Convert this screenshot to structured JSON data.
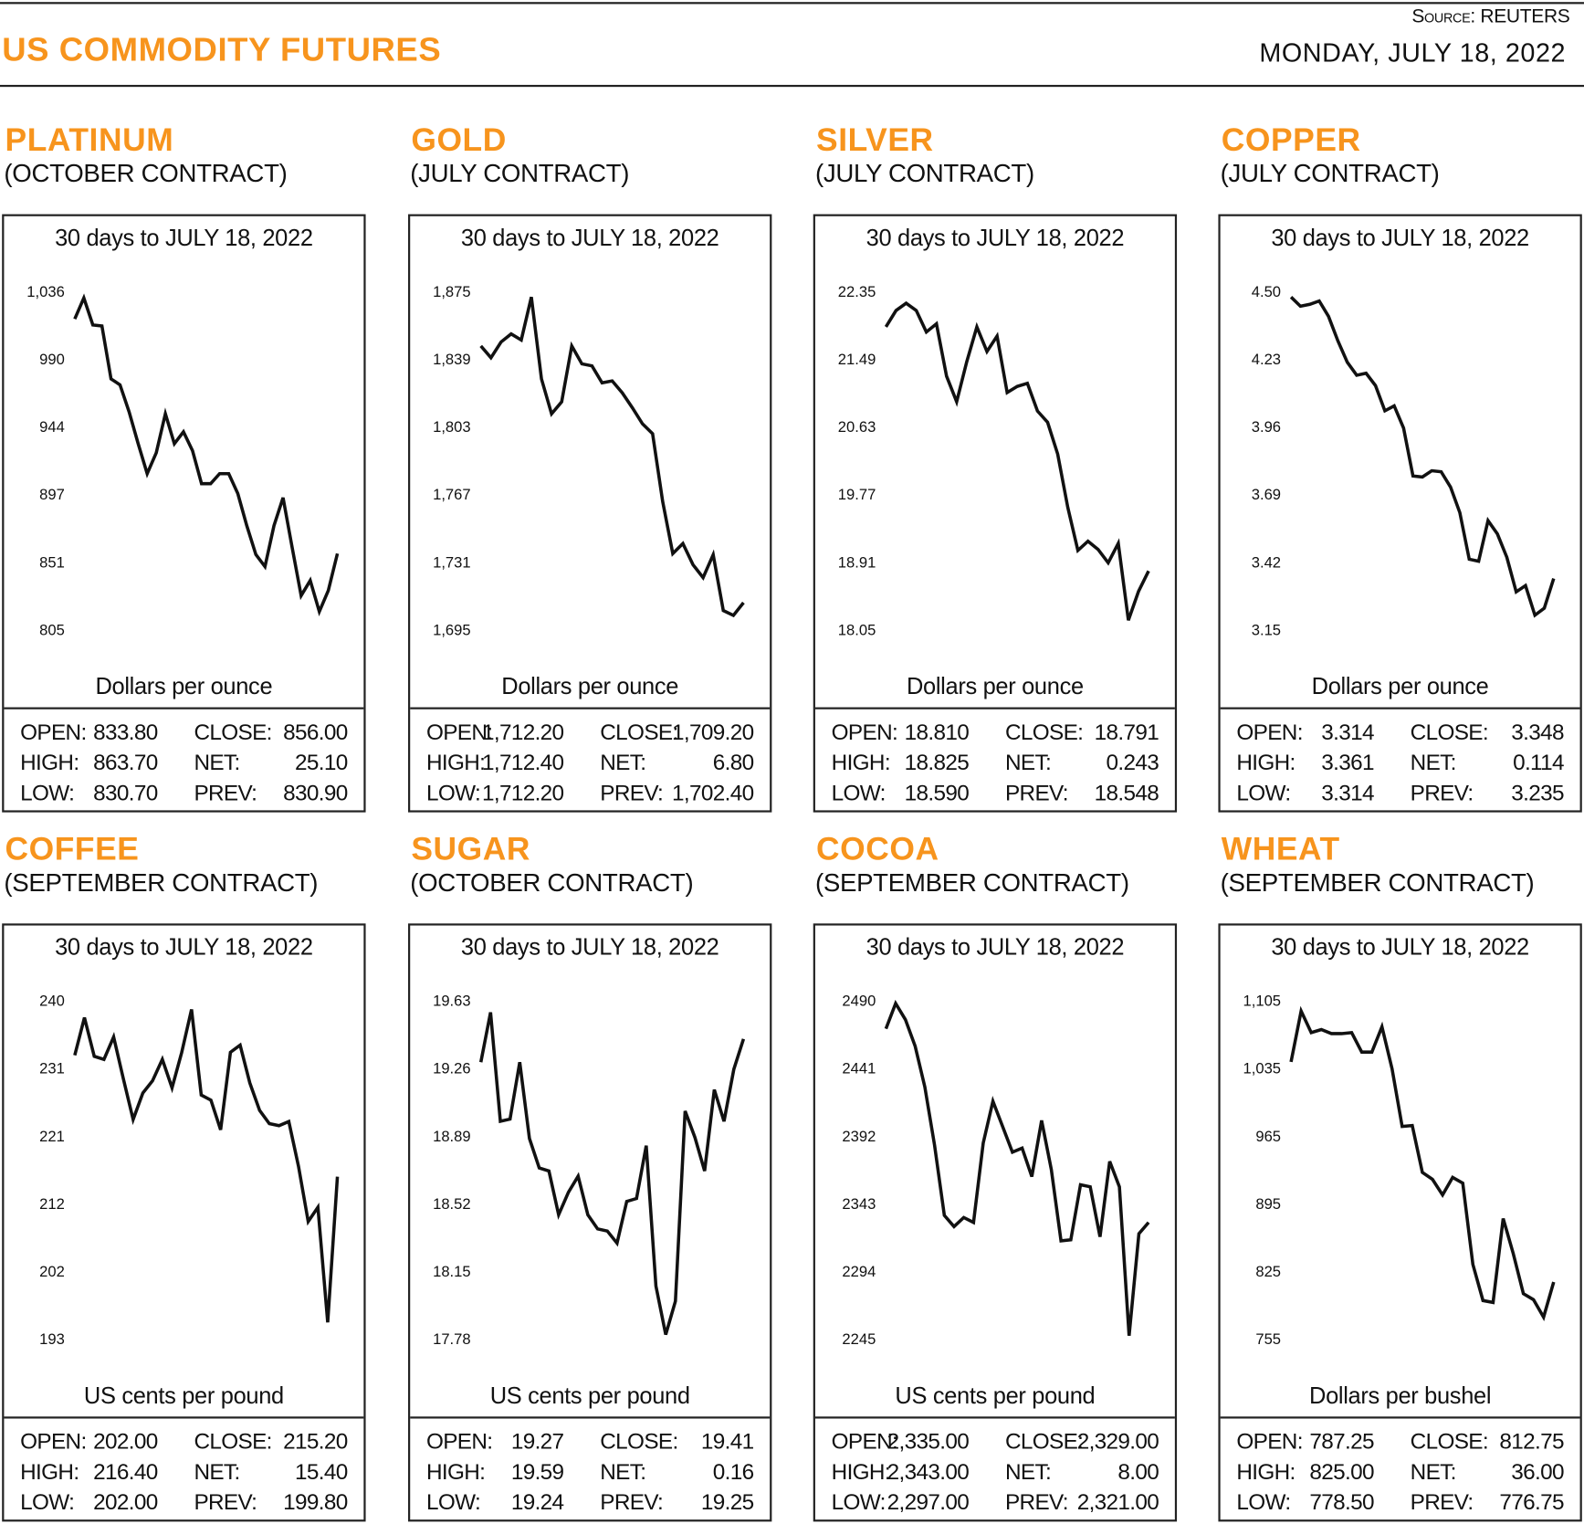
{
  "header": {
    "title": "US COMMODITY FUTURES",
    "source": "Source: REUTERS",
    "date": "MONDAY, JULY 18, 2022",
    "accent_color": "#f7941d"
  },
  "labels": {
    "open": "OPEN:",
    "high": "HIGH:",
    "low": "LOW:",
    "close": "CLOSE:",
    "net": "NET:",
    "prev": "PREV:"
  },
  "panels": [
    {
      "name": "PLATINUM",
      "contract": "(OCTOBER CONTRACT)",
      "period": "30 days to JULY 18, 2022",
      "unit": "Dollars per ounce",
      "stats": {
        "open": "833.80",
        "high": "863.70",
        "low": "830.70",
        "close": "856.00",
        "net": "25.10",
        "prev": "830.90"
      }
    },
    {
      "name": "GOLD",
      "contract": "(JULY CONTRACT)",
      "period": "30 days to JULY 18, 2022",
      "unit": "Dollars per ounce",
      "stats": {
        "open": "1,712.20",
        "high": "1,712.40",
        "low": "1,712.20",
        "close": "1,709.20",
        "net": "6.80",
        "prev": "1,702.40"
      }
    },
    {
      "name": "SILVER",
      "contract": "(JULY CONTRACT)",
      "period": "30 days to JULY 18, 2022",
      "unit": "Dollars per ounce",
      "stats": {
        "open": "18.810",
        "high": "18.825",
        "low": "18.590",
        "close": "18.791",
        "net": "0.243",
        "prev": "18.548"
      }
    },
    {
      "name": "COPPER",
      "contract": "(JULY CONTRACT)",
      "period": "30 days to JULY 18, 2022",
      "unit": "Dollars per ounce",
      "stats": {
        "open": "3.314",
        "high": "3.361",
        "low": "3.314",
        "close": "3.348",
        "net": "0.114",
        "prev": "3.235"
      }
    },
    {
      "name": "COFFEE",
      "contract": "(SEPTEMBER CONTRACT)",
      "period": "30 days to JULY 18, 2022",
      "unit": "US cents per pound",
      "stats": {
        "open": "202.00",
        "high": "216.40",
        "low": "202.00",
        "close": "215.20",
        "net": "15.40",
        "prev": "199.80"
      }
    },
    {
      "name": "SUGAR",
      "contract": "(OCTOBER CONTRACT)",
      "period": "30 days to JULY 18, 2022",
      "unit": "US cents per pound",
      "stats": {
        "open": "19.27",
        "high": "19.59",
        "low": "19.24",
        "close": "19.41",
        "net": "0.16",
        "prev": "19.25"
      }
    },
    {
      "name": "COCOA",
      "contract": "(SEPTEMBER CONTRACT)",
      "period": "30 days to JULY 18, 2022",
      "unit": "US cents per pound",
      "stats": {
        "open": "2,335.00",
        "high": "2,343.00",
        "low": "2,297.00",
        "close": "2,329.00",
        "net": "8.00",
        "prev": "2,321.00"
      }
    },
    {
      "name": "WHEAT",
      "contract": "(SEPTEMBER CONTRACT)",
      "period": "30 days to JULY 18, 2022",
      "unit": "Dollars per bushel",
      "stats": {
        "open": "787.25",
        "high": "825.00",
        "low": "778.50",
        "close": "812.75",
        "net": "36.00",
        "prev": "776.75"
      }
    }
  ],
  "chart_data": [
    {
      "type": "line",
      "title": "PLATINUM",
      "ylabel": "Dollars per ounce",
      "yticks": [
        "1,036",
        "990",
        "944",
        "897",
        "851",
        "805"
      ],
      "ylim": [
        805,
        1036
      ],
      "grid": false,
      "values": [
        1017.6,
        1031.9,
        1013.5,
        1012.8,
        976.7,
        972.6,
        954.2,
        932.4,
        912.0,
        926.3,
        952.9,
        932.4,
        940.6,
        927.7,
        905.2,
        905.2,
        912.0,
        912.0,
        898.4,
        876.5,
        856.8,
        848.6,
        876.5,
        895.6,
        861.6,
        828.8,
        839.1,
        817.9,
        832.3,
        857.5
      ]
    },
    {
      "type": "line",
      "title": "GOLD",
      "ylabel": "Dollars per ounce",
      "yticks": [
        "1,875",
        "1,839",
        "1,803",
        "1,767",
        "1,731",
        "1,695"
      ],
      "ylim": [
        1695,
        1875
      ],
      "grid": false,
      "values": [
        1846.3,
        1840.0,
        1848.4,
        1852.7,
        1849.5,
        1872.3,
        1828.8,
        1810.2,
        1816.6,
        1846.3,
        1836.8,
        1835.7,
        1826.7,
        1827.7,
        1821.4,
        1813.4,
        1804.9,
        1799.6,
        1763.5,
        1735.9,
        1741.2,
        1730.0,
        1723.1,
        1735.3,
        1705.6,
        1703.0,
        1709.8
      ]
    },
    {
      "type": "line",
      "title": "SILVER",
      "ylabel": "Dollars per ounce",
      "yticks": [
        "22.35",
        "21.49",
        "20.63",
        "19.77",
        "18.91",
        "18.05"
      ],
      "ylim": [
        18.05,
        22.35
      ],
      "grid": false,
      "values": [
        21.907,
        22.115,
        22.207,
        22.115,
        21.842,
        21.946,
        21.281,
        20.956,
        21.464,
        21.907,
        21.594,
        21.79,
        21.073,
        21.151,
        21.19,
        20.838,
        20.695,
        20.291,
        19.613,
        19.066,
        19.183,
        19.079,
        18.91,
        19.157,
        18.18,
        18.545,
        18.806
      ]
    },
    {
      "type": "line",
      "title": "COPPER",
      "ylabel": "Dollars per ounce",
      "yticks": [
        "4.50",
        "4.23",
        "3.96",
        "3.69",
        "3.42",
        "3.15"
      ],
      "ylim": [
        3.15,
        4.5
      ],
      "grid": false,
      "values": [
        4.48,
        4.443,
        4.451,
        4.464,
        4.403,
        4.305,
        4.22,
        4.168,
        4.176,
        4.127,
        4.026,
        4.046,
        3.957,
        3.766,
        3.762,
        3.787,
        3.783,
        3.722,
        3.62,
        3.434,
        3.426,
        3.588,
        3.535,
        3.442,
        3.304,
        3.329,
        3.211,
        3.239,
        3.357
      ]
    },
    {
      "type": "line",
      "title": "COFFEE",
      "ylabel": "US cents per pound",
      "yticks": [
        "240",
        "231",
        "221",
        "212",
        "202",
        "193"
      ],
      "ylim": [
        193,
        240
      ],
      "grid": false,
      "values": [
        232.5,
        237.73,
        232.36,
        231.93,
        235.05,
        229.24,
        223.58,
        227.26,
        228.96,
        231.93,
        227.97,
        232.92,
        238.87,
        226.98,
        226.27,
        222.16,
        232.92,
        233.91,
        228.67,
        224.85,
        223.01,
        222.73,
        223.3,
        217.07,
        209.42,
        211.4,
        195.41,
        215.65
      ]
    },
    {
      "type": "line",
      "title": "SUGAR",
      "ylabel": "US cents per pound",
      "yticks": [
        "19.63",
        "19.26",
        "18.89",
        "18.52",
        "18.15",
        "17.78"
      ],
      "ylim": [
        17.78,
        19.63
      ],
      "grid": false,
      "values": [
        19.297,
        19.569,
        18.974,
        18.986,
        19.297,
        18.88,
        18.719,
        18.702,
        18.463,
        18.586,
        18.674,
        18.463,
        18.386,
        18.374,
        18.308,
        18.536,
        18.552,
        18.841,
        18.074,
        17.808,
        17.991,
        19.03,
        18.886,
        18.702,
        19.147,
        18.974,
        19.258,
        19.424
      ]
    },
    {
      "type": "line",
      "title": "COCOA",
      "ylabel": "US cents per pound",
      "yticks": [
        "2490",
        "2441",
        "2392",
        "2343",
        "2294",
        "2245"
      ],
      "ylim": [
        2245,
        2490
      ],
      "grid": false,
      "values": [
        2470.1,
        2488.5,
        2476.7,
        2457.5,
        2428.0,
        2385.9,
        2335.0,
        2326.9,
        2333.5,
        2329.9,
        2387.4,
        2417.7,
        2399.2,
        2380.8,
        2383.7,
        2363.1,
        2403.7,
        2368.2,
        2316.6,
        2317.3,
        2357.2,
        2355.7,
        2319.5,
        2374.1,
        2355.7,
        2247.9,
        2321.7,
        2329.9
      ]
    },
    {
      "type": "line",
      "title": "WHEAT",
      "ylabel": "Dollars per bushel",
      "yticks": [
        "1,105",
        "1,035",
        "965",
        "895",
        "825",
        "755"
      ],
      "ylim": [
        755,
        1105
      ],
      "grid": false,
      "values": [
        1042.3,
        1094.9,
        1072.6,
        1075.7,
        1071.6,
        1071.6,
        1072.6,
        1052.4,
        1052.4,
        1078.7,
        1035.2,
        975.5,
        976.5,
        928.0,
        920.9,
        904.7,
        922.9,
        916.9,
        832.9,
        795.5,
        793.5,
        880.4,
        844.0,
        802.6,
        796.5,
        778.3,
        814.7
      ]
    }
  ]
}
